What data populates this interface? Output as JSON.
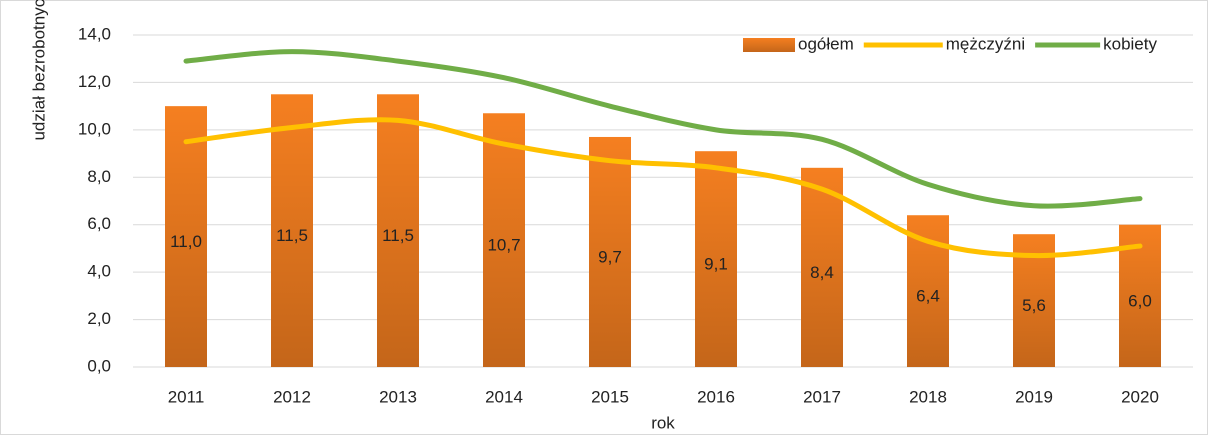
{
  "chart_data": {
    "type": "bar",
    "categories": [
      "2011",
      "2012",
      "2013",
      "2014",
      "2015",
      "2016",
      "2017",
      "2018",
      "2019",
      "2020"
    ],
    "series": [
      {
        "name": "ogółem",
        "type": "bar",
        "color": "#f57f20",
        "values": [
          11.0,
          11.5,
          11.5,
          10.7,
          9.7,
          9.1,
          8.4,
          6.4,
          5.6,
          6.0
        ],
        "value_labels": [
          "11,0",
          "11,5",
          "11,5",
          "10,7",
          "9,7",
          "9,1",
          "8,4",
          "6,4",
          "5,6",
          "6,0"
        ]
      },
      {
        "name": "mężczyźni",
        "type": "line",
        "color": "#ffc000",
        "values": [
          9.5,
          10.1,
          10.4,
          9.4,
          8.7,
          8.4,
          7.5,
          5.3,
          4.7,
          5.1
        ]
      },
      {
        "name": "kobiety",
        "type": "line",
        "color": "#70ad47",
        "values": [
          12.9,
          13.3,
          12.9,
          12.2,
          11.0,
          10.0,
          9.6,
          7.7,
          6.8,
          7.1
        ]
      }
    ],
    "ylim": [
      0,
      14
    ],
    "yticks": [
      {
        "value": 0,
        "label": "0,0"
      },
      {
        "value": 2,
        "label": "2,0"
      },
      {
        "value": 4,
        "label": "4,0"
      },
      {
        "value": 6,
        "label": "6,0"
      },
      {
        "value": 8,
        "label": "8,0"
      },
      {
        "value": 10,
        "label": "10,0"
      },
      {
        "value": 12,
        "label": "12,0"
      },
      {
        "value": 14,
        "label": "14,0"
      }
    ],
    "grid": true,
    "legend": "top-right",
    "xlabel": "rok",
    "ylabel": "udział bezrobotnych %"
  }
}
